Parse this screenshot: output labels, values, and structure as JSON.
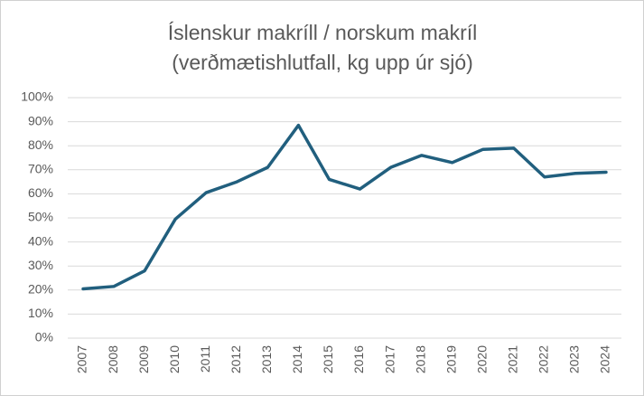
{
  "chart_data": {
    "type": "line",
    "title": "Íslenskur makríll / norskum makríl",
    "subtitle": "(verðmætishlutfall, kg upp úr sjó)",
    "categories": [
      "2007",
      "2008",
      "2009",
      "2010",
      "2011",
      "2012",
      "2013",
      "2014",
      "2015",
      "2016",
      "2017",
      "2018",
      "2019",
      "2020",
      "2021",
      "2022",
      "2023",
      "2024"
    ],
    "series": [
      {
        "name": "Íslenskur makríll / norskum makríl",
        "color": "#215f7e",
        "values": [
          20.5,
          21.5,
          28,
          49.5,
          60.5,
          65,
          71,
          88.5,
          66,
          62,
          71,
          76,
          73,
          78.5,
          79,
          67,
          68.5,
          69
        ]
      }
    ],
    "ylim": [
      0,
      100
    ],
    "yticks": [
      {
        "value": 0,
        "label": "0%"
      },
      {
        "value": 10,
        "label": "10%"
      },
      {
        "value": 20,
        "label": "20%"
      },
      {
        "value": 30,
        "label": "30%"
      },
      {
        "value": 40,
        "label": "40%"
      },
      {
        "value": 50,
        "label": "50%"
      },
      {
        "value": 60,
        "label": "60%"
      },
      {
        "value": 70,
        "label": "70%"
      },
      {
        "value": 80,
        "label": "80%"
      },
      {
        "value": 90,
        "label": "90%"
      },
      {
        "value": 100,
        "label": "100%"
      }
    ],
    "grid": true
  }
}
